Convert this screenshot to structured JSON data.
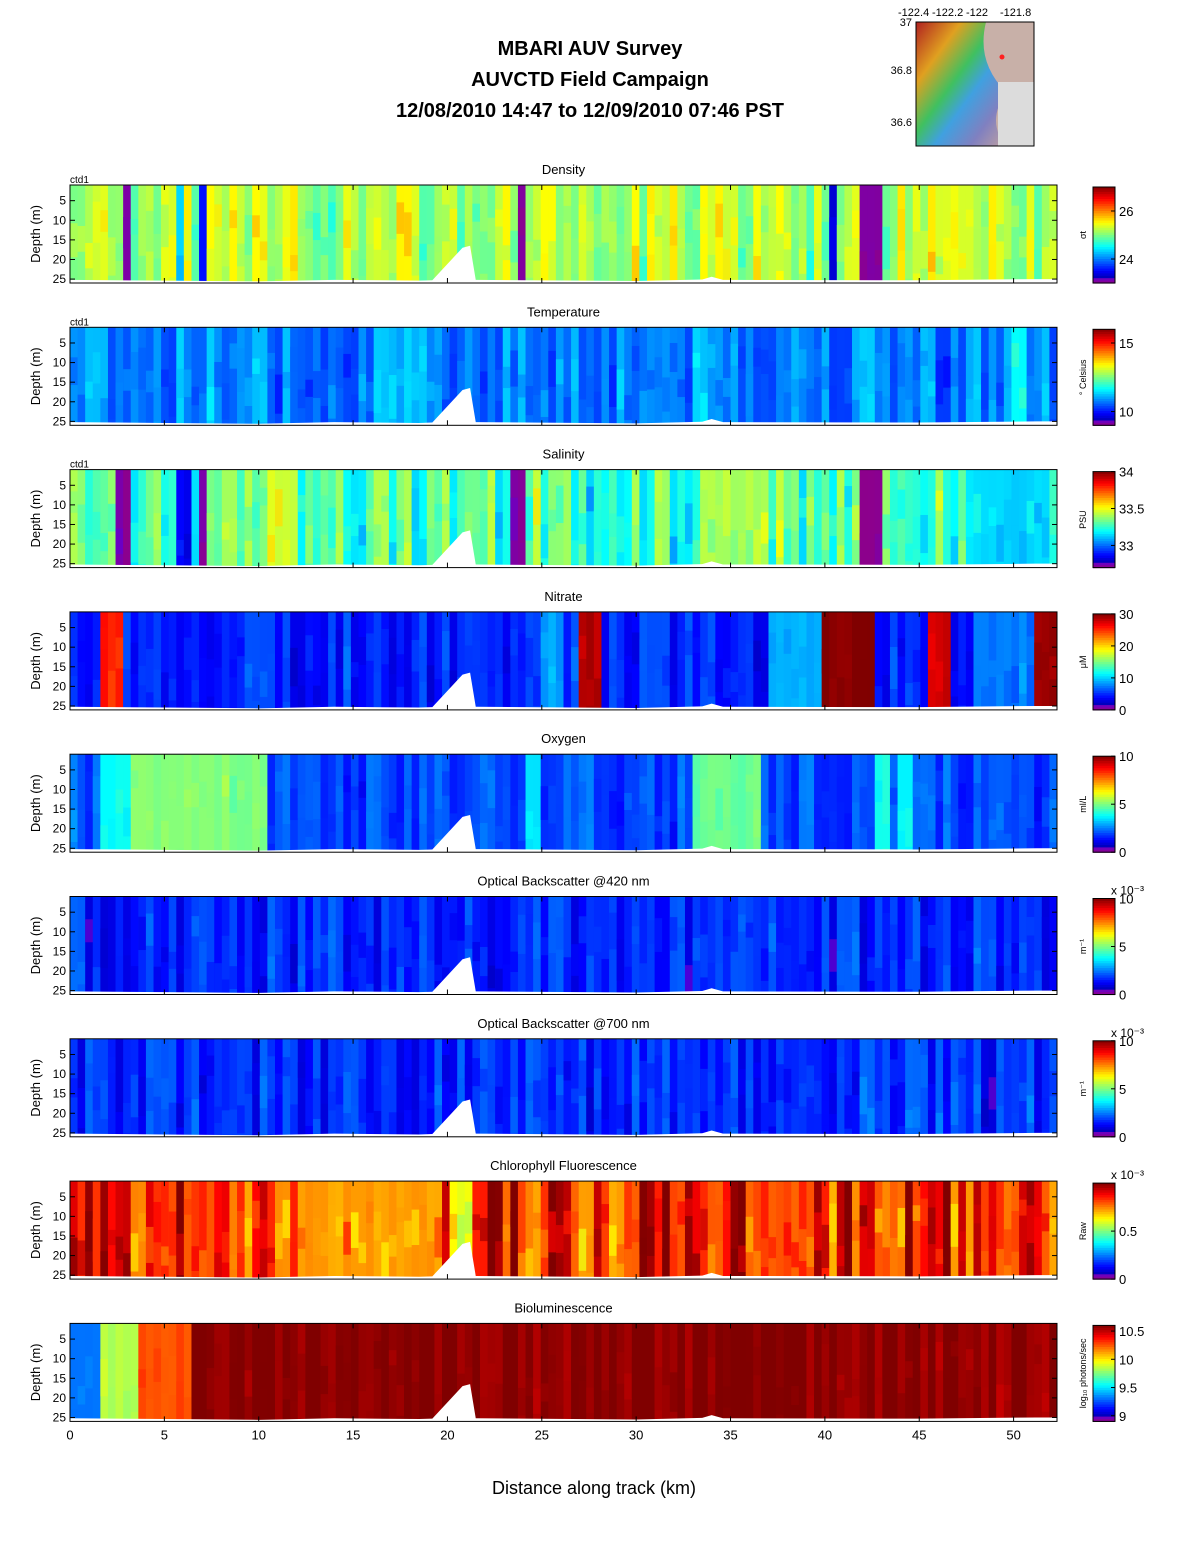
{
  "header": {
    "line1": "MBARI AUV Survey",
    "line2": "AUVCTD Field Campaign",
    "line3": "12/08/2010 14:47  to 12/09/2010 07:46 PST"
  },
  "minimap": {
    "x_ticks": [
      "-122.4",
      "-122.2",
      "-122",
      "-121.8"
    ],
    "y_ticks": [
      "37",
      "36.8",
      "36.6"
    ]
  },
  "xaxis": {
    "label": "Distance along track (km)",
    "ticks": [
      0,
      5,
      10,
      15,
      20,
      25,
      30,
      35,
      40,
      45,
      50
    ],
    "range": [
      0,
      52.3
    ]
  },
  "yaxis": {
    "label": "Depth (m)",
    "ticks": [
      5,
      10,
      15,
      20,
      25
    ],
    "range": [
      1,
      26
    ]
  },
  "chart_data": [
    {
      "type": "heatmap",
      "title": "Density",
      "tag": "ctd1",
      "cmap": "jet",
      "unit": "σt",
      "cb_ticks": [
        "26",
        "24"
      ],
      "cb_range": [
        23,
        27
      ],
      "cb_exp": "",
      "base": 0.55,
      "seed": 3,
      "texture": 0.1,
      "bands": [
        [
          2.7,
          3.2,
          0.02
        ],
        [
          7.0,
          7.3,
          0.12
        ],
        [
          5.8,
          6.1,
          0.35
        ],
        [
          23.6,
          24.2,
          0.0
        ],
        [
          40.3,
          40.5,
          0.1
        ],
        [
          42.0,
          43.0,
          0.0
        ]
      ]
    },
    {
      "type": "heatmap",
      "title": "Temperature",
      "tag": "ctd1",
      "cmap": "jet",
      "unit": "° Celsius",
      "cb_ticks": [
        "15",
        "10"
      ],
      "cb_range": [
        9,
        16
      ],
      "cb_exp": "",
      "base": 0.26,
      "seed": 7,
      "texture": 0.08,
      "bands": [
        [
          1.0,
          2.0,
          0.32
        ],
        [
          9.8,
          10.5,
          0.3
        ],
        [
          50.0,
          50.6,
          0.36
        ]
      ]
    },
    {
      "type": "heatmap",
      "title": "Salinity",
      "tag": "ctd1",
      "cmap": "jet",
      "unit": "PSU",
      "cb_ticks": [
        "34",
        "33.5",
        "33"
      ],
      "cb_range": [
        32.7,
        34
      ],
      "cb_exp": "",
      "base": 0.45,
      "seed": 11,
      "texture": 0.12,
      "bands": [
        [
          2.5,
          3.2,
          0.02
        ],
        [
          5.7,
          6.5,
          0.12
        ],
        [
          7.0,
          7.3,
          0.04
        ],
        [
          23.5,
          24.2,
          0.0
        ],
        [
          42.0,
          43.0,
          0.0
        ],
        [
          47.5,
          52.0,
          0.34
        ],
        [
          10.5,
          12.0,
          0.58
        ],
        [
          33.5,
          37.0,
          0.55
        ]
      ]
    },
    {
      "type": "heatmap",
      "title": "Nitrate",
      "tag": "",
      "cmap": "jet",
      "unit": "μM",
      "cb_ticks": [
        "30",
        "20",
        "10",
        "0"
      ],
      "cb_range": [
        0,
        30
      ],
      "cb_exp": "",
      "base": 0.16,
      "seed": 19,
      "texture": 0.06,
      "bands": [
        [
          1.8,
          3.0,
          0.86
        ],
        [
          26.9,
          28.2,
          0.95
        ],
        [
          40.0,
          42.6,
          1.0
        ],
        [
          45.6,
          46.5,
          0.92
        ],
        [
          24.8,
          26.2,
          0.28
        ],
        [
          37.2,
          40.0,
          0.3
        ],
        [
          48.0,
          50.5,
          0.25
        ],
        [
          51.2,
          52.2,
          0.98
        ]
      ]
    },
    {
      "type": "heatmap",
      "title": "Oxygen",
      "tag": "",
      "cmap": "jet",
      "unit": "ml/L",
      "cb_ticks": [
        "10",
        "5",
        "0"
      ],
      "cb_range": [
        0,
        10
      ],
      "cb_exp": "",
      "base": 0.2,
      "seed": 23,
      "texture": 0.06,
      "bands": [
        [
          1.5,
          3.2,
          0.38
        ],
        [
          3.2,
          10.5,
          0.5
        ],
        [
          33.0,
          36.8,
          0.48
        ],
        [
          24.0,
          24.8,
          0.36
        ],
        [
          42.8,
          43.5,
          0.4
        ],
        [
          44.0,
          44.6,
          0.38
        ]
      ]
    },
    {
      "type": "heatmap",
      "title": "Optical Backscatter @420 nm",
      "tag": "",
      "cmap": "jet",
      "unit": "m⁻¹",
      "cb_ticks": [
        "10",
        "5",
        "0"
      ],
      "cb_range": [
        0,
        10
      ],
      "cb_exp": "x 10⁻³",
      "base": 0.16,
      "seed": 29,
      "texture": 0.07,
      "bands": []
    },
    {
      "type": "heatmap",
      "title": "Optical Backscatter @700 nm",
      "tag": "",
      "cmap": "jet",
      "unit": "m⁻¹",
      "cb_ticks": [
        "10",
        "5",
        "0"
      ],
      "cb_range": [
        0,
        10
      ],
      "cb_exp": "x 10⁻³",
      "base": 0.16,
      "seed": 31,
      "texture": 0.07,
      "bands": []
    },
    {
      "type": "heatmap",
      "title": "Chlorophyll Fluorescence",
      "tag": "",
      "cmap": "jet",
      "unit": "Raw",
      "cb_ticks": [
        "0.5",
        "0"
      ],
      "cb_range": [
        0,
        1
      ],
      "cb_exp": "x 10⁻³",
      "base": 0.86,
      "seed": 37,
      "texture": 0.16,
      "bands": [
        [
          12.0,
          19.5,
          0.72
        ],
        [
          20.0,
          21.5,
          0.62
        ]
      ]
    },
    {
      "type": "heatmap",
      "title": "Bioluminescence",
      "tag": "",
      "cmap": "jet",
      "unit": "log₁₀ photons/sec",
      "cb_ticks": [
        "10.5",
        "10",
        "9.5",
        "9"
      ],
      "cb_range": [
        8.9,
        10.6
      ],
      "cb_exp": "",
      "base": 0.99,
      "seed": 41,
      "texture": 0.04,
      "bands": [
        [
          0.0,
          1.5,
          0.25
        ],
        [
          1.5,
          3.5,
          0.55
        ],
        [
          3.5,
          6.5,
          0.8
        ]
      ]
    }
  ]
}
